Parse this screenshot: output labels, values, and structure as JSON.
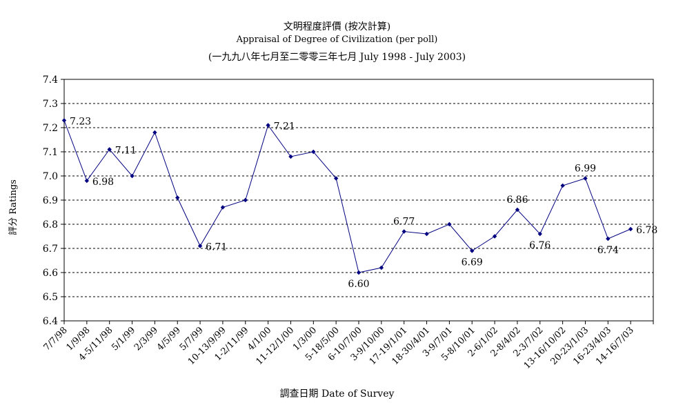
{
  "chart_data": {
    "type": "line",
    "title": "文明程度評價 (按次計算)",
    "subtitle": "Appraisal of Degree of Civilization (per poll)",
    "subtitle2": "(一九九八年七月至二零零三年七月 July 1998 - July 2003)",
    "xlabel": "調查日期 Date of Survey",
    "ylabel": "評分 Ratings",
    "ylim": [
      6.4,
      7.4
    ],
    "yticks": [
      "7.4",
      "7.3",
      "7.2",
      "7.1",
      "7.0",
      "6.9",
      "6.8",
      "6.7",
      "6.6",
      "6.5",
      "6.4"
    ],
    "grid": true,
    "line_color": "#000080",
    "categories": [
      "7/7/98",
      "1/9/98",
      "4-5/11/98",
      "5/1/99",
      "2/3/99",
      "4/5/99",
      "5/7/99",
      "10-13/9/99",
      "1-2/11/99",
      "4/1/00",
      "11-12/1/00",
      "1/3/00",
      "5-18/5/00",
      "6-10/7/00",
      "3-9/10/00",
      "17-19/1/01",
      "18-30/4/01",
      "3-9/7/01",
      "5-8/10/01",
      "2-6/1/02",
      "2-8/4/02",
      "2-3/7/02",
      "13-16/10/02",
      "20-23/1/03",
      "16-23/4/03",
      "14-16/7/03"
    ],
    "values": [
      7.23,
      6.98,
      7.11,
      7.0,
      7.18,
      6.91,
      6.71,
      6.87,
      6.9,
      7.21,
      7.08,
      7.1,
      6.99,
      6.6,
      6.62,
      6.77,
      6.76,
      6.8,
      6.69,
      6.75,
      6.86,
      6.76,
      6.96,
      6.99,
      6.74,
      6.78
    ],
    "data_labels": [
      {
        "index": 0,
        "text": "7.23",
        "pos": "right"
      },
      {
        "index": 1,
        "text": "6.98",
        "pos": "right"
      },
      {
        "index": 2,
        "text": "7.11",
        "pos": "right"
      },
      {
        "index": 6,
        "text": "6.71",
        "pos": "right"
      },
      {
        "index": 9,
        "text": "7.21",
        "pos": "right"
      },
      {
        "index": 13,
        "text": "6.60",
        "pos": "below"
      },
      {
        "index": 15,
        "text": "6.77",
        "pos": "above"
      },
      {
        "index": 18,
        "text": "6.69",
        "pos": "below"
      },
      {
        "index": 20,
        "text": "6.86",
        "pos": "above"
      },
      {
        "index": 21,
        "text": "6.76",
        "pos": "below"
      },
      {
        "index": 23,
        "text": "6.99",
        "pos": "above"
      },
      {
        "index": 24,
        "text": "6.74",
        "pos": "below"
      },
      {
        "index": 25,
        "text": "6.78",
        "pos": "right"
      }
    ]
  }
}
